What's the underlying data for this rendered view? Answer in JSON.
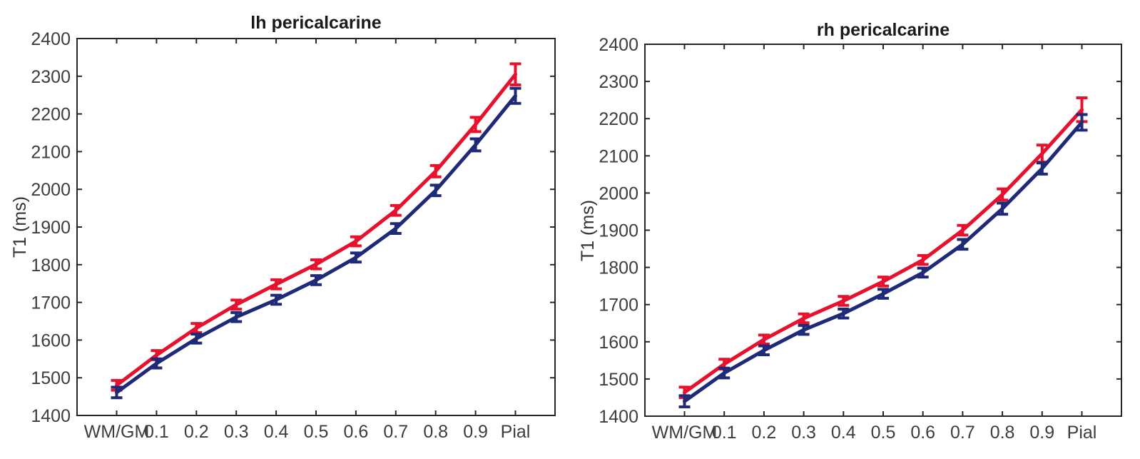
{
  "figure": {
    "background": "#ffffff",
    "axis_color": "#262626",
    "tick_label_color": "#3d3d3d",
    "title_color": "#1a1a1a"
  },
  "chart_data": [
    {
      "type": "line",
      "title": "lh pericalcarine",
      "xlabel": "",
      "ylabel": "T1 (ms)",
      "categories": [
        "WM/GM",
        "0.1",
        "0.2",
        "0.3",
        "0.4",
        "0.5",
        "0.6",
        "0.7",
        "0.8",
        "0.9",
        "Pial"
      ],
      "ylim": [
        1400,
        2400
      ],
      "yticks": [
        "1400",
        "1500",
        "1600",
        "1700",
        "1800",
        "1900",
        "2000",
        "2100",
        "2200",
        "2300",
        "2400"
      ],
      "grid": false,
      "legend": "none",
      "box": true,
      "series": [
        {
          "name": "red",
          "color": "#e8112d",
          "values": [
            1480,
            1560,
            1632,
            1694,
            1748,
            1801,
            1862,
            1944,
            2048,
            2172,
            2305
          ],
          "error": [
            13,
            12,
            12,
            12,
            12,
            12,
            12,
            13,
            15,
            19,
            28
          ]
        },
        {
          "name": "blue",
          "color": "#1e2a78",
          "values": [
            1461,
            1538,
            1604,
            1661,
            1707,
            1759,
            1819,
            1896,
            1997,
            2118,
            2248
          ],
          "error": [
            14,
            12,
            12,
            12,
            12,
            12,
            12,
            13,
            14,
            16,
            20
          ]
        }
      ]
    },
    {
      "type": "line",
      "title": "rh pericalcarine",
      "xlabel": "",
      "ylabel": "T1 (ms)",
      "categories": [
        "WM/GM",
        "0.1",
        "0.2",
        "0.3",
        "0.4",
        "0.5",
        "0.6",
        "0.7",
        "0.8",
        "0.9",
        "Pial"
      ],
      "ylim": [
        1400,
        2400
      ],
      "yticks": [
        "1400",
        "1500",
        "1600",
        "1700",
        "1800",
        "1900",
        "2000",
        "2100",
        "2200",
        "2300",
        "2400"
      ],
      "grid": false,
      "legend": "none",
      "box": true,
      "series": [
        {
          "name": "red",
          "color": "#e8112d",
          "values": [
            1464,
            1540,
            1606,
            1663,
            1710,
            1762,
            1820,
            1900,
            1996,
            2106,
            2224
          ],
          "error": [
            14,
            13,
            12,
            12,
            12,
            12,
            12,
            13,
            15,
            23,
            32
          ]
        },
        {
          "name": "blue",
          "color": "#1e2a78",
          "values": [
            1440,
            1516,
            1577,
            1632,
            1676,
            1729,
            1786,
            1862,
            1958,
            2066,
            2190
          ],
          "error": [
            15,
            13,
            12,
            12,
            12,
            12,
            12,
            13,
            15,
            15,
            21
          ]
        }
      ]
    }
  ]
}
